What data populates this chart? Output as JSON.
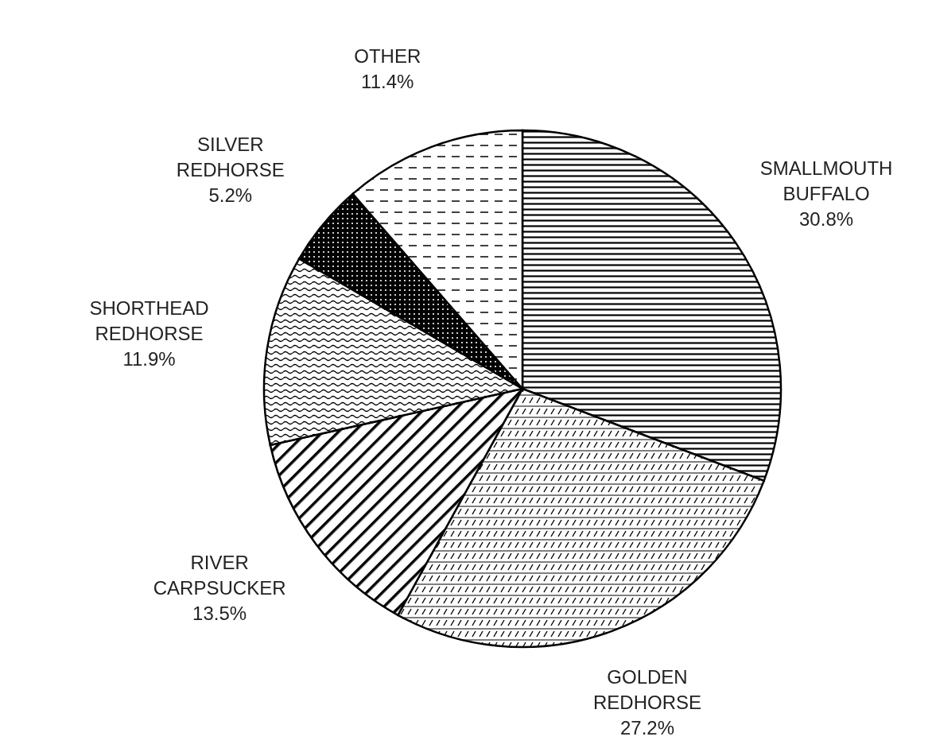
{
  "chart_data": {
    "type": "pie",
    "categories": [
      "SMALLMOUTH BUFFALO",
      "GOLDEN REDHORSE",
      "RIVER CARPSUCKER",
      "SHORTHEAD REDHORSE",
      "SILVER REDHORSE",
      "OTHER"
    ],
    "values": [
      30.8,
      27.2,
      13.5,
      11.9,
      5.2,
      11.4
    ],
    "value_labels": [
      "30.8%",
      "27.2%",
      "13.5%",
      "11.9%",
      "5.2%",
      "11.4%"
    ],
    "colors": [
      "#000000",
      "#000000",
      "#000000",
      "#000000",
      "#000000",
      "#000000"
    ]
  }
}
